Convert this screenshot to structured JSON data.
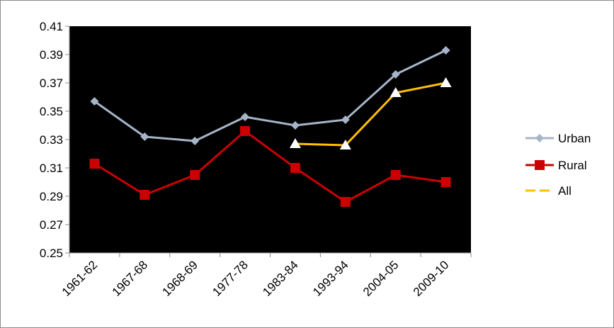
{
  "chart_data": {
    "type": "line",
    "categories": [
      "1961-62",
      "1967-68",
      "1968-69",
      "1977-78",
      "1983-84",
      "1993-94",
      "2004-05",
      "2009-10"
    ],
    "series": [
      {
        "name": "Urban",
        "color": "#a6b4c8",
        "marker": "diamond",
        "values": [
          0.357,
          0.332,
          0.329,
          0.346,
          0.34,
          0.344,
          0.376,
          0.393
        ]
      },
      {
        "name": "Rural",
        "color": "#cc0000",
        "marker": "square",
        "values": [
          0.313,
          0.291,
          0.305,
          0.336,
          0.31,
          0.286,
          0.305,
          0.3
        ]
      },
      {
        "name": "All",
        "color": "#ffc000",
        "marker": "triangle",
        "values": [
          null,
          null,
          null,
          null,
          0.327,
          0.326,
          0.363,
          0.37
        ]
      }
    ],
    "yticks": [
      "0.25",
      "0.27",
      "0.29",
      "0.31",
      "0.33",
      "0.35",
      "0.37",
      "0.39",
      "0.41"
    ],
    "ylim": [
      0.25,
      0.41
    ],
    "plot_background": "#000000",
    "legend_position": "right",
    "grid": false
  }
}
